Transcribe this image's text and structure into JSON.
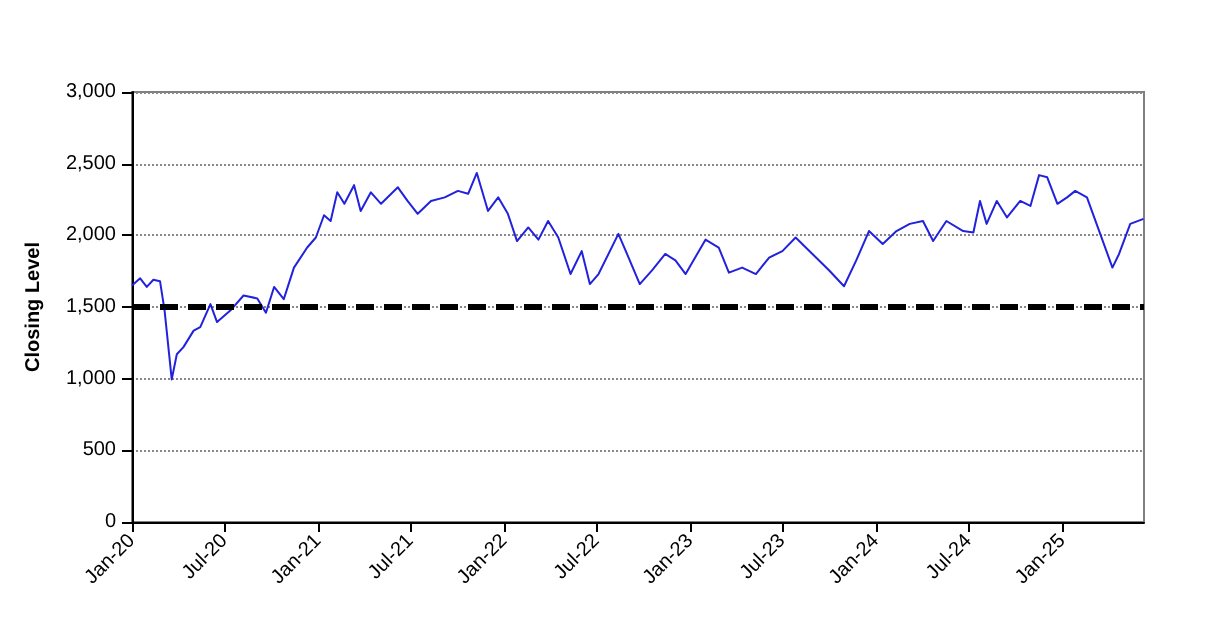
{
  "chart_data": {
    "type": "line",
    "ylabel": "Closing Level",
    "x": [
      "2020-01-01",
      "2020-01-17",
      "2020-01-30",
      "2020-02-12",
      "2020-02-25",
      "2020-03-05",
      "2020-03-19",
      "2020-03-29",
      "2020-04-11",
      "2020-05-01",
      "2020-05-14",
      "2020-06-03",
      "2020-06-16",
      "2020-07-12",
      "2020-08-07",
      "2020-09-03",
      "2020-09-20",
      "2020-10-06",
      "2020-10-25",
      "2020-11-14",
      "2020-12-10",
      "2020-12-27",
      "2021-01-12",
      "2021-01-25",
      "2021-02-07",
      "2021-02-21",
      "2021-03-12",
      "2021-03-25",
      "2021-04-14",
      "2021-05-04",
      "2021-06-06",
      "2021-06-25",
      "2021-07-15",
      "2021-08-10",
      "2021-09-06",
      "2021-10-02",
      "2021-10-22",
      "2021-11-08",
      "2021-11-30",
      "2021-12-20",
      "2022-01-08",
      "2022-01-26",
      "2022-02-17",
      "2022-03-09",
      "2022-03-28",
      "2022-04-17",
      "2022-05-11",
      "2022-06-02",
      "2022-06-18",
      "2022-07-05",
      "2022-08-13",
      "2022-09-02",
      "2022-09-24",
      "2022-10-18",
      "2022-11-13",
      "2022-12-03",
      "2022-12-23",
      "2023-01-31",
      "2023-02-26",
      "2023-03-18",
      "2023-04-13",
      "2023-05-10",
      "2023-06-05",
      "2023-07-01",
      "2023-07-27",
      "2023-08-29",
      "2023-10-01",
      "2023-10-30",
      "2023-11-23",
      "2023-12-18",
      "2024-01-14",
      "2024-02-10",
      "2024-03-07",
      "2024-04-02",
      "2024-04-22",
      "2024-05-18",
      "2024-06-20",
      "2024-07-10",
      "2024-07-23",
      "2024-08-05",
      "2024-08-25",
      "2024-09-14",
      "2024-10-10",
      "2024-10-30",
      "2024-11-16",
      "2024-12-02",
      "2024-12-22",
      "2025-01-10",
      "2025-01-26",
      "2025-02-18",
      "2025-03-16",
      "2025-04-09",
      "2025-04-22",
      "2025-05-14",
      "2025-06-09"
    ],
    "series": [
      {
        "color": "#2222dd",
        "values": [
          1650,
          1700,
          1640,
          1690,
          1680,
          1475,
          995,
          1170,
          1220,
          1335,
          1360,
          1520,
          1395,
          1475,
          1580,
          1560,
          1460,
          1640,
          1555,
          1775,
          1915,
          1985,
          2140,
          2100,
          2300,
          2220,
          2350,
          2170,
          2300,
          2220,
          2335,
          2240,
          2150,
          2240,
          2265,
          2310,
          2290,
          2435,
          2170,
          2265,
          2150,
          1960,
          2055,
          1970,
          2100,
          1985,
          1730,
          1890,
          1660,
          1730,
          2010,
          1845,
          1660,
          1755,
          1870,
          1825,
          1730,
          1970,
          1915,
          1740,
          1775,
          1730,
          1845,
          1890,
          1985,
          1870,
          1755,
          1645,
          1825,
          2030,
          1940,
          2030,
          2080,
          2100,
          1960,
          2100,
          2030,
          2020,
          2240,
          2080,
          2240,
          2125,
          2240,
          2205,
          2420,
          2405,
          2220,
          2265,
          2310,
          2265,
          2010,
          1775,
          1870,
          2080,
          2115
        ]
      }
    ],
    "xlim": [
      "2020-01-01",
      "2025-06-10"
    ],
    "xticks": [
      {
        "value": "2020-01-01",
        "label": "Jan-20"
      },
      {
        "value": "2020-07-01",
        "label": "Jul-20"
      },
      {
        "value": "2021-01-01",
        "label": "Jan-21"
      },
      {
        "value": "2021-07-01",
        "label": "Jul-21"
      },
      {
        "value": "2022-01-01",
        "label": "Jan-22"
      },
      {
        "value": "2022-07-01",
        "label": "Jul-22"
      },
      {
        "value": "2023-01-01",
        "label": "Jan-23"
      },
      {
        "value": "2023-07-01",
        "label": "Jul-23"
      },
      {
        "value": "2024-01-01",
        "label": "Jan-24"
      },
      {
        "value": "2024-07-01",
        "label": "Jul-24"
      },
      {
        "value": "2025-01-01",
        "label": "Jan-25"
      }
    ],
    "ylim": [
      0,
      3000
    ],
    "yticks": [
      0,
      500,
      {
        "value": 1000,
        "label": "1,000"
      },
      {
        "value": 1500,
        "label": "1,500"
      },
      {
        "value": 2000,
        "label": "2,000"
      },
      {
        "value": 2500,
        "label": "2,500"
      },
      {
        "value": 3000,
        "label": "3,000"
      }
    ],
    "ref_lines": [
      {
        "axis": "y",
        "value": 1500,
        "color": "#000000",
        "line_style": "dashed"
      }
    ],
    "grid": "y",
    "marker": "none",
    "line_style": "solid"
  }
}
